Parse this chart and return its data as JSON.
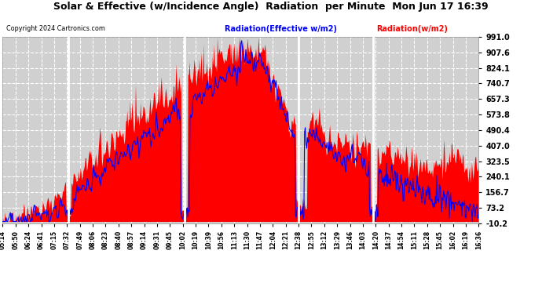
{
  "title": "Solar & Effective (w/Incidence Angle)  Radiation  per Minute  Mon Jun 17 16:39",
  "copyright": "Copyright 2024 Cartronics.com",
  "legend_blue": "Radiation(Effective w/m2)",
  "legend_red": "Radiation(w/m2)",
  "yticks": [
    -10.2,
    73.2,
    156.7,
    240.1,
    323.5,
    407.0,
    490.4,
    573.8,
    657.3,
    740.7,
    824.1,
    907.6,
    991.0
  ],
  "xtick_labels": [
    "05:14",
    "05:50",
    "06:24",
    "06:41",
    "07:15",
    "07:32",
    "07:49",
    "08:06",
    "08:23",
    "08:40",
    "08:57",
    "09:14",
    "09:31",
    "09:45",
    "10:02",
    "10:19",
    "10:39",
    "10:56",
    "11:13",
    "11:30",
    "11:47",
    "12:04",
    "12:21",
    "12:38",
    "12:55",
    "13:12",
    "13:29",
    "13:46",
    "14:03",
    "14:20",
    "14:37",
    "14:54",
    "15:11",
    "15:28",
    "15:45",
    "16:02",
    "16:19",
    "16:36"
  ],
  "bg_color": "#ffffff",
  "plot_bg_color": "#d0d0d0",
  "grid_color": "#ffffff",
  "fill_color_red": "#ff0000",
  "line_color_blue": "#0000ff",
  "ymin": -10.2,
  "ymax": 991.0,
  "white_lines": [
    0.138,
    0.382,
    0.622,
    0.778
  ]
}
